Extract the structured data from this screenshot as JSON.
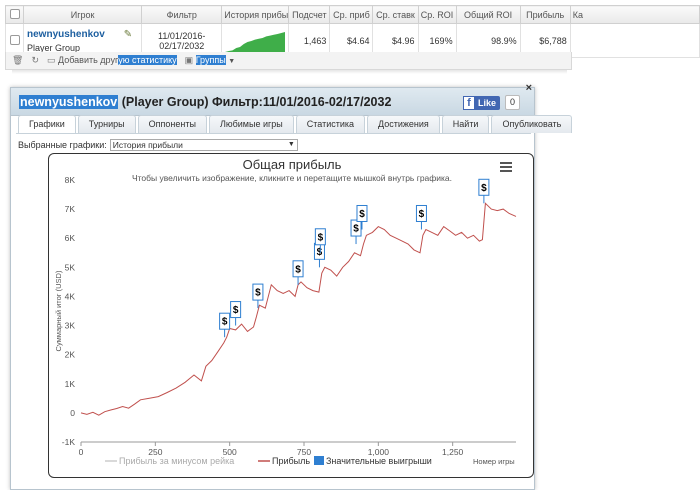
{
  "table": {
    "headers": [
      "",
      "Игрок",
      "Фильтр",
      "История прибы",
      "Подсчет",
      "Ср. приб",
      "Ср. ставк",
      "Ср. ROI",
      "Общий ROI",
      "Прибыль",
      "Ка"
    ],
    "row": {
      "player_name": "newnyushenkov",
      "player_group": "Player Group",
      "filter_line1": "11/01/2016-",
      "filter_line2": "02/17/2032",
      "count": "1,463",
      "avg_profit": "$4.64",
      "avg_stake": "$4.96",
      "avg_roi": "169%",
      "total_roi": "98.9%",
      "profit": "$6,788",
      "sparkline": [
        0,
        0.05,
        0.08,
        0.2,
        0.25,
        0.4,
        0.5,
        0.55,
        0.62,
        0.66,
        0.7,
        0.78,
        0.82,
        0.86,
        0.9,
        0.95,
        1.0
      ]
    }
  },
  "toolbar": {
    "add_prefix": "Добавить друг",
    "add_highlight": "ую статистику",
    "groups_label": "Группы"
  },
  "popup": {
    "player_name": "newnyushenkov",
    "title_rest": " (Player Group) Фильтр:11/01/2016-02/17/2032",
    "fb_label": "Like",
    "fb_count": "0",
    "close": "×",
    "tabs": [
      "Графики",
      "Турниры",
      "Оппоненты",
      "Любимые игры",
      "Статистика",
      "Достижения",
      "Найти",
      "Опубликовать"
    ],
    "active_tab": "Графики",
    "select_label": "Выбранные графики:",
    "select_value": "История прибыли"
  },
  "chart_data": {
    "type": "line",
    "title": "Общая прибыль",
    "subtitle": "Чтобы увеличить изображение, кликните и перетащите мышкой внутрь графика.",
    "ylabel": "Суммарный итог (USD)",
    "xlabel": "Номер игры",
    "xlim": [
      0,
      1463
    ],
    "ylim": [
      -1000,
      8000
    ],
    "x_ticks": [
      "0",
      "250",
      "500",
      "750",
      "1,000",
      "1,250"
    ],
    "x_tick_values": [
      0,
      250,
      500,
      750,
      1000,
      1250
    ],
    "y_ticks": [
      "-1K",
      "0",
      "1K",
      "2K",
      "3K",
      "4K",
      "5K",
      "6K",
      "7K",
      "8K"
    ],
    "y_tick_values": [
      -1000,
      0,
      1000,
      2000,
      3000,
      4000,
      5000,
      6000,
      7000,
      8000
    ],
    "legend": [
      "Прибыль за минусом рейка",
      "Прибыль",
      "Значительные выигрыши"
    ],
    "legend_colors": [
      "#cccccc",
      "#c0504d",
      "#2f7fd1"
    ],
    "series": [
      {
        "name": "Прибыль",
        "x": [
          0,
          20,
          40,
          60,
          80,
          100,
          120,
          140,
          160,
          180,
          200,
          230,
          260,
          290,
          320,
          350,
          380,
          405,
          420,
          440,
          460,
          480,
          490,
          500,
          520,
          540,
          560,
          580,
          590,
          600,
          620,
          640,
          660,
          680,
          700,
          720,
          730,
          740,
          760,
          780,
          800,
          810,
          820,
          840,
          860,
          880,
          900,
          920,
          940,
          950,
          960,
          980,
          1000,
          1020,
          1040,
          1060,
          1080,
          1100,
          1120,
          1140,
          1150,
          1160,
          1180,
          1200,
          1220,
          1240,
          1260,
          1280,
          1300,
          1320,
          1340,
          1350,
          1360,
          1380,
          1400,
          1420,
          1440,
          1463
        ],
        "values": [
          0,
          -50,
          20,
          -80,
          40,
          100,
          150,
          220,
          160,
          300,
          450,
          500,
          560,
          700,
          850,
          1050,
          1300,
          1100,
          1600,
          1800,
          2100,
          2400,
          2600,
          2900,
          2850,
          3050,
          2800,
          2950,
          3300,
          3700,
          3600,
          4400,
          4200,
          4100,
          4200,
          4000,
          4400,
          4500,
          4300,
          4200,
          4150,
          4800,
          5000,
          4900,
          4700,
          5000,
          5200,
          5500,
          5400,
          5800,
          6100,
          6200,
          6400,
          6300,
          6100,
          6000,
          5900,
          5800,
          5600,
          5500,
          6100,
          6300,
          6200,
          6100,
          6400,
          6250,
          6100,
          6200,
          6000,
          6100,
          5900,
          5950,
          7200,
          7000,
          6950,
          7000,
          6850,
          6750
        ]
      }
    ],
    "big_wins": [
      {
        "x": 483,
        "y": 2600
      },
      {
        "x": 520,
        "y": 3000
      },
      {
        "x": 595,
        "y": 3600
      },
      {
        "x": 730,
        "y": 4400
      },
      {
        "x": 802,
        "y": 5000
      },
      {
        "x": 805,
        "y": 5500
      },
      {
        "x": 925,
        "y": 5800
      },
      {
        "x": 945,
        "y": 6300
      },
      {
        "x": 1145,
        "y": 6300
      },
      {
        "x": 1355,
        "y": 7200
      }
    ],
    "big_win_symbol": "$",
    "grid": false
  },
  "icons": {
    "trash": "trash-icon",
    "refresh": "refresh-icon",
    "add": "add-stat-icon",
    "groups": "groups-icon",
    "menu": "chart-menu-icon",
    "tag": "tag-icon"
  }
}
